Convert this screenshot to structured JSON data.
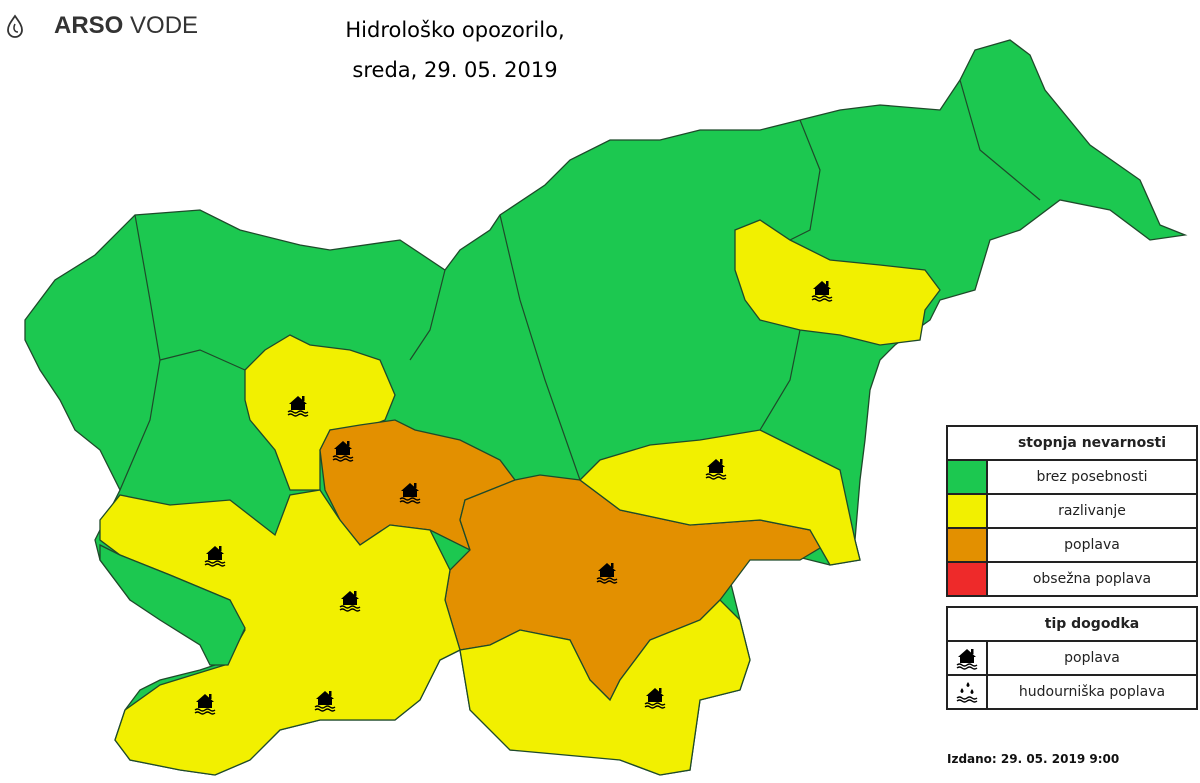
{
  "logo": {
    "brand_bold": "ARSO",
    "brand_light": "VODE"
  },
  "title": {
    "line1": "Hidrološko opozorilo,",
    "line2": "sreda, 29. 05. 2019"
  },
  "colors": {
    "brez posebnosti": "#1cc850",
    "razlivanje": "#f2f000",
    "poplava": "#e39000",
    "obsežna poplava": "#ee2a2a",
    "border": "#1e4a2a"
  },
  "regions": [
    {
      "level": "brez posebnosti",
      "icon": null
    },
    {
      "level": "razlivanje",
      "icon": "flood-house-icon"
    },
    {
      "level": "razlivanje",
      "icon": "flood-house-icon"
    },
    {
      "level": "poplava",
      "icon": "flood-house-icon"
    },
    {
      "level": "poplava",
      "icon": "flood-house-icon"
    },
    {
      "level": "razlivanje",
      "icon": "flood-house-icon"
    },
    {
      "level": "razlivanje",
      "icon": "flood-house-icon"
    },
    {
      "level": "razlivanje",
      "icon": "flood-house-icon"
    },
    {
      "level": "brez posebnosti",
      "icon": null
    }
  ],
  "legend": {
    "danger_title": "stopnja nevarnosti",
    "levels": [
      {
        "label": "brez posebnosti",
        "color": "#1cc850"
      },
      {
        "label": "razlivanje",
        "color": "#f2f000"
      },
      {
        "label": "poplava",
        "color": "#e39000"
      },
      {
        "label": "obsežna poplava",
        "color": "#ee2a2a"
      }
    ],
    "type_title": "tip dogodka",
    "types": [
      {
        "label": "poplava",
        "icon": "flood-house-icon"
      },
      {
        "label": "hudourniška poplava",
        "icon": "flash-flood-icon"
      }
    ]
  },
  "issued": "Izdano: 29. 05. 2019 9:00"
}
